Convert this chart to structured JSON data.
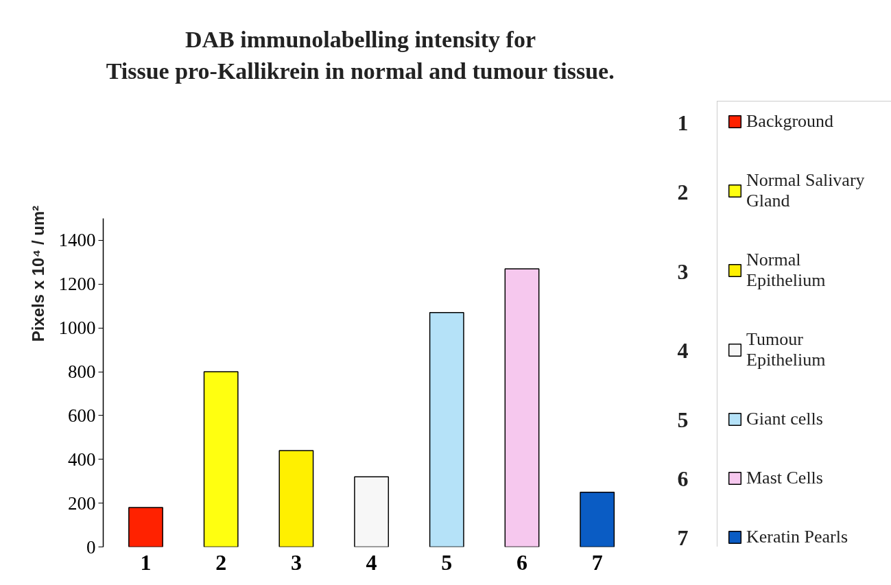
{
  "chart_data": {
    "type": "bar",
    "title": "DAB immunolabelling intensity for Tissue pro-Kallikrein in normal and tumour tissue.",
    "ylabel": "Pixels x 10⁴ / um²",
    "categories": [
      "1",
      "2",
      "3",
      "4",
      "5",
      "6",
      "7"
    ],
    "stacked": true,
    "series": [
      {
        "name": "Background",
        "color": "#ff2200",
        "values": [
          180,
          null,
          null,
          null,
          null,
          null,
          null
        ]
      },
      {
        "name": "Normal Salivary Gland",
        "color": "#ffff10",
        "values": [
          null,
          800,
          null,
          null,
          null,
          null,
          null
        ]
      },
      {
        "name": "Normal Epithelium",
        "color": "#fff000",
        "values": [
          null,
          null,
          440,
          null,
          null,
          null,
          null
        ]
      },
      {
        "name": "Tumour Epithelium",
        "color": "#f7f7f7",
        "values": [
          null,
          null,
          null,
          320,
          null,
          null,
          null
        ]
      },
      {
        "name": "Giant cells",
        "color": "#b5e2f8",
        "values": [
          null,
          null,
          null,
          null,
          1070,
          null,
          null
        ]
      },
      {
        "name": "Mast Cells",
        "color": "#f6c8ee",
        "values": [
          null,
          null,
          null,
          null,
          null,
          1270,
          null
        ]
      },
      {
        "name": "Keratin Pearls",
        "color": "#0a5cc4",
        "values": [
          null,
          null,
          null,
          null,
          null,
          null,
          250
        ]
      }
    ],
    "ylim": [
      0,
      1500
    ],
    "yticks": [
      0,
      200,
      400,
      600,
      800,
      1000,
      1200,
      1400
    ],
    "legend": "right"
  }
}
